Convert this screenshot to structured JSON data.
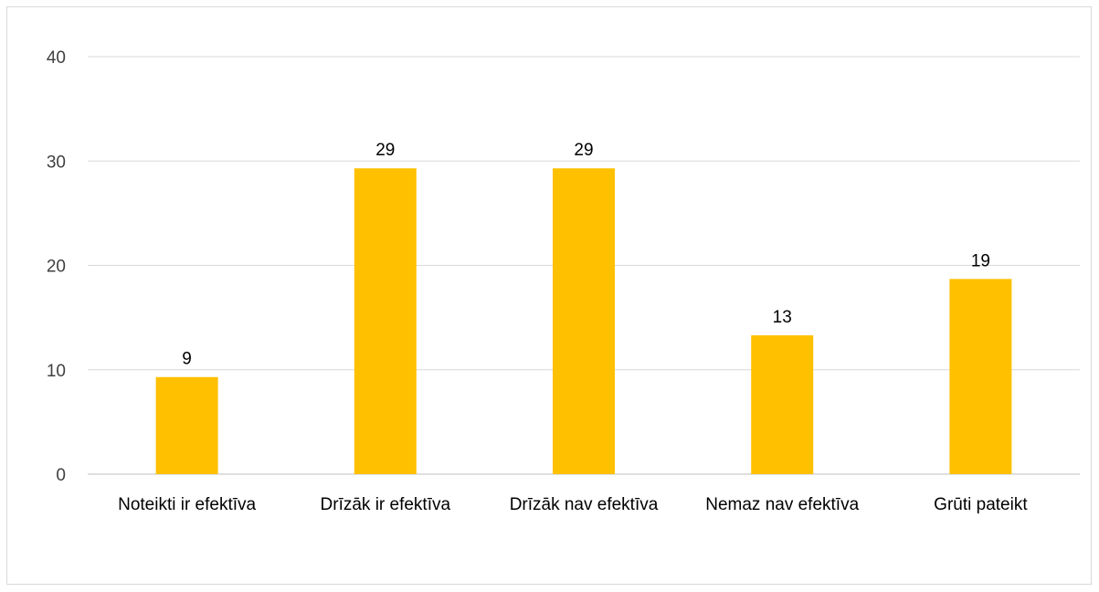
{
  "colors": {
    "bar": "#FFC000",
    "grid": "#d9d9d9",
    "axis": "#bfbfbf"
  },
  "chart_data": {
    "type": "bar",
    "categories": [
      "Noteikti ir efektīva",
      "Drīzāk ir efektīva",
      "Drīzāk nav efektīva",
      "Nemaz nav efektīva",
      "Grūti pateikt"
    ],
    "values": [
      9.3,
      29.3,
      29.3,
      13.3,
      18.7
    ],
    "data_labels": [
      "9",
      "29",
      "29",
      "13",
      "19"
    ],
    "ylim": [
      0,
      40
    ],
    "yticks": [
      0,
      10,
      20,
      30,
      40
    ],
    "grid": true,
    "legend": "none"
  }
}
